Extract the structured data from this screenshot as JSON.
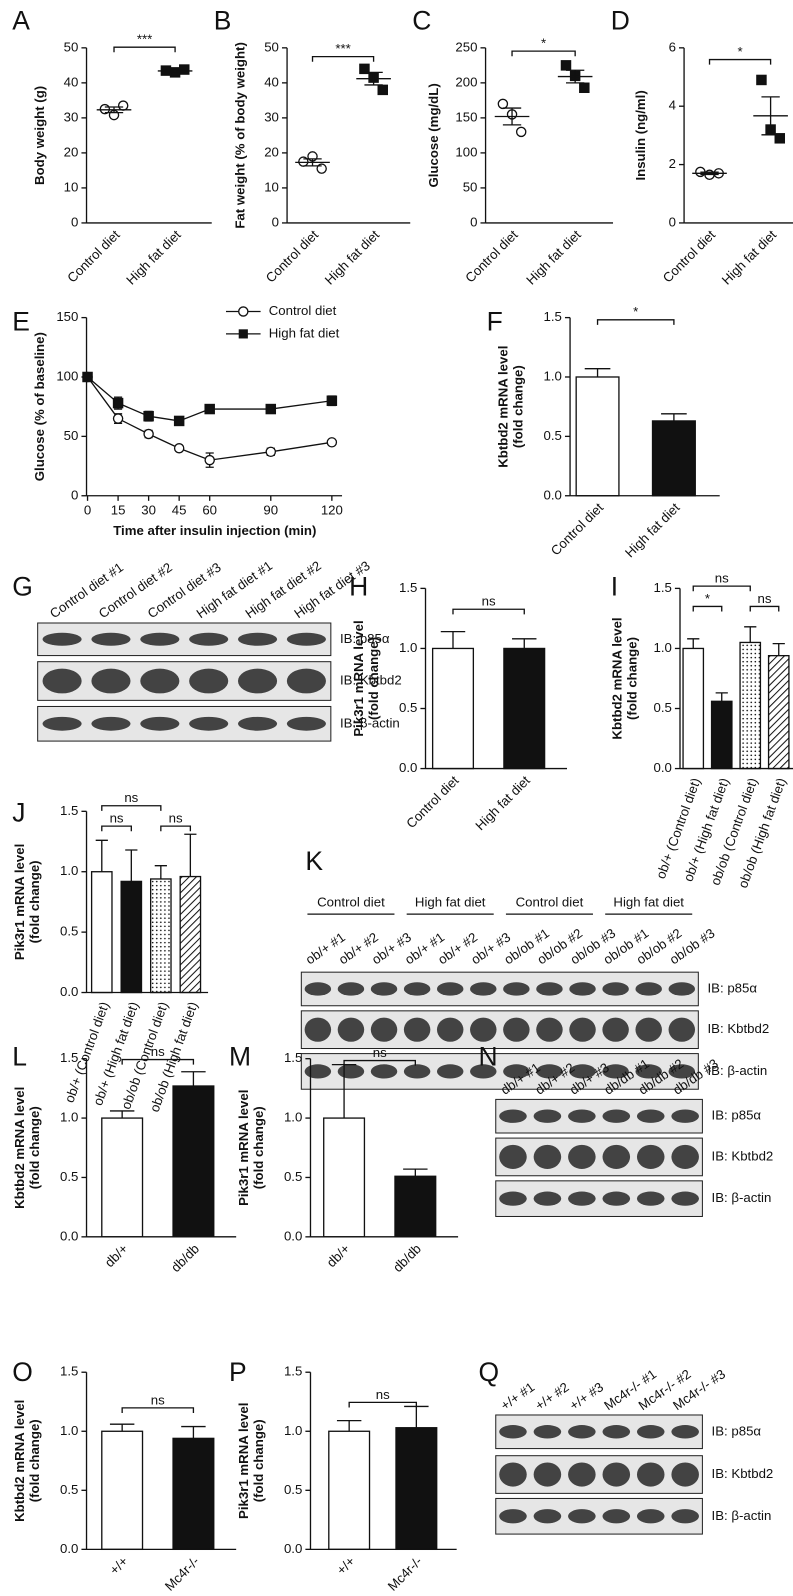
{
  "chart_data": [
    {
      "type": "dot",
      "label": "A",
      "ylabel": [
        "Body weight (g)"
      ],
      "categories": [
        "Control diet",
        "High fat diet"
      ],
      "markers": [
        "open-circle",
        "filled-square"
      ],
      "points": [
        [
          32.5,
          30.8,
          33.5
        ],
        [
          43.5,
          43,
          43.8
        ]
      ],
      "means": [
        32.3,
        43.4
      ],
      "errors": [
        0.8,
        0.3
      ],
      "ylim": [
        0,
        50
      ],
      "yticks": [
        0,
        10,
        20,
        30,
        40,
        50
      ],
      "comparisons": [
        {
          "label": "***",
          "pair": [
            0,
            1
          ]
        }
      ]
    },
    {
      "type": "dot",
      "label": "B",
      "ylabel": [
        "Fat weight (% of body weight)"
      ],
      "categories": [
        "Control diet",
        "High fat diet"
      ],
      "markers": [
        "open-circle",
        "filled-square"
      ],
      "points": [
        [
          17.5,
          19,
          15.5
        ],
        [
          44,
          41.5,
          38
        ]
      ],
      "means": [
        17.3,
        41.2
      ],
      "errors": [
        1,
        1.8
      ],
      "ylim": [
        0,
        50
      ],
      "yticks": [
        0,
        10,
        20,
        30,
        40,
        50
      ],
      "comparisons": [
        {
          "label": "***",
          "pair": [
            0,
            1
          ]
        }
      ]
    },
    {
      "type": "dot",
      "label": "C",
      "ylabel": [
        "Glucose (mg/dL)"
      ],
      "categories": [
        "Control diet",
        "High fat diet"
      ],
      "markers": [
        "open-circle",
        "filled-square"
      ],
      "points": [
        [
          170,
          155,
          130
        ],
        [
          225,
          210,
          193
        ]
      ],
      "means": [
        152,
        209
      ],
      "errors": [
        12,
        9
      ],
      "ylim": [
        0,
        250
      ],
      "yticks": [
        0,
        50,
        100,
        150,
        200,
        250
      ],
      "comparisons": [
        {
          "label": "*",
          "pair": [
            0,
            1
          ]
        }
      ]
    },
    {
      "type": "dot",
      "label": "D",
      "ylabel": [
        "Insulin (ng/ml)"
      ],
      "categories": [
        "Control diet",
        "High fat diet"
      ],
      "markers": [
        "open-circle",
        "filled-square"
      ],
      "points": [
        [
          1.75,
          1.65,
          1.7
        ],
        [
          4.9,
          3.2,
          2.9
        ]
      ],
      "means": [
        1.7,
        3.67
      ],
      "errors": [
        0.04,
        0.65
      ],
      "ylim": [
        0,
        6
      ],
      "yticks": [
        0,
        2,
        4,
        6
      ],
      "comparisons": [
        {
          "label": "*",
          "pair": [
            0,
            1
          ]
        }
      ]
    },
    {
      "type": "line",
      "label": "E",
      "ylabel": [
        "Glucose (% of baseline)"
      ],
      "xlabel": "Time after insulin injection (min)",
      "x": [
        0,
        15,
        30,
        45,
        60,
        90,
        120
      ],
      "xlim": [
        0,
        125
      ],
      "xticks": [
        0,
        15,
        30,
        45,
        60,
        90,
        120
      ],
      "ylim": [
        0,
        150
      ],
      "yticks": [
        0,
        50,
        100,
        150
      ],
      "series": [
        {
          "name": "Control diet",
          "marker": "open-circle",
          "values": [
            100,
            65,
            52,
            40,
            30,
            37,
            45
          ],
          "errors": [
            0,
            4,
            3,
            2,
            6,
            3,
            2
          ]
        },
        {
          "name": "High fat diet",
          "marker": "filled-square",
          "values": [
            100,
            78,
            67,
            63,
            73,
            73,
            80
          ],
          "errors": [
            0,
            5,
            4,
            2,
            3,
            3,
            4
          ]
        }
      ]
    },
    {
      "type": "bar",
      "label": "F",
      "ylabel": [
        "Kbtbd2 mRNA level",
        "(fold change)"
      ],
      "categories": [
        "Control diet",
        "High fat diet"
      ],
      "fills": [
        "white",
        "black"
      ],
      "values": [
        1.0,
        0.63
      ],
      "errors": [
        0.07,
        0.06
      ],
      "ylim": [
        0,
        1.5
      ],
      "yticks": [
        {
          "value": 0,
          "label": "0.0"
        },
        0.5,
        {
          "value": 1,
          "label": "1.0"
        },
        1.5
      ],
      "comparisons": [
        {
          "label": "*",
          "pair": [
            0,
            1
          ]
        }
      ]
    },
    {
      "type": "blot",
      "label": "G",
      "lanes": [
        "Control diet #1",
        "Control diet #2",
        "Control diet #3",
        "High fat diet #1",
        "High fat diet #2",
        "High fat diet #3"
      ],
      "blots": [
        "IB: p85α",
        "IB: Kbtbd2",
        "IB: β-actin"
      ]
    },
    {
      "type": "bar",
      "label": "H",
      "ylabel": [
        "Pik3r1 mRNA level",
        "(fold change)"
      ],
      "categories": [
        "Control diet",
        "High fat diet"
      ],
      "fills": [
        "white",
        "black"
      ],
      "values": [
        1.0,
        1.0
      ],
      "errors": [
        0.14,
        0.08
      ],
      "ylim": [
        0,
        1.5
      ],
      "yticks": [
        {
          "value": 0,
          "label": "0.0"
        },
        0.5,
        {
          "value": 1,
          "label": "1.0"
        },
        1.5
      ],
      "comparisons": [
        {
          "label": "ns",
          "pair": [
            0,
            1
          ]
        }
      ]
    },
    {
      "type": "bar",
      "label": "I",
      "ylabel": [
        "Kbtbd2 mRNA level",
        "(fold change)"
      ],
      "categories": [
        "ob/+ (Control diet)",
        "ob/+ (High fat diet)",
        "ob/ob (Control diet)",
        "ob/ob (High fat diet)"
      ],
      "fills": [
        "white",
        "black",
        "dots",
        "hatch"
      ],
      "values": [
        1.0,
        0.56,
        1.05,
        0.94
      ],
      "errors": [
        0.08,
        0.07,
        0.13,
        0.1
      ],
      "ylim": [
        0,
        1.5
      ],
      "yticks": [
        {
          "value": 0,
          "label": "0.0"
        },
        0.5,
        {
          "value": 1,
          "label": "1.0"
        },
        1.5
      ],
      "comparisons": [
        {
          "label": "*",
          "pair": [
            0,
            1
          ]
        },
        {
          "label": "ns",
          "pair": [
            2,
            3
          ]
        },
        {
          "label": "ns",
          "pair": [
            0,
            2
          ]
        }
      ]
    },
    {
      "type": "bar",
      "label": "J",
      "ylabel": [
        "Pik3r1 mRNA level",
        "(fold change)"
      ],
      "categories": [
        "ob/+ (Control diet)",
        "ob/+ (High fat diet)",
        "ob/ob (Control diet)",
        "ob/ob (High fat diet)"
      ],
      "fills": [
        "white",
        "black",
        "dots",
        "hatch"
      ],
      "values": [
        1.0,
        0.92,
        0.94,
        0.96
      ],
      "errors": [
        0.26,
        0.26,
        0.11,
        0.35
      ],
      "ylim": [
        0,
        1.5
      ],
      "yticks": [
        {
          "value": 0,
          "label": "0.0"
        },
        0.5,
        {
          "value": 1,
          "label": "1.0"
        },
        1.5
      ],
      "comparisons": [
        {
          "label": "ns",
          "pair": [
            0,
            1
          ]
        },
        {
          "label": "ns",
          "pair": [
            2,
            3
          ]
        },
        {
          "label": "ns",
          "pair": [
            0,
            2
          ]
        }
      ]
    },
    {
      "type": "blot",
      "label": "K",
      "groups": [
        "Control diet",
        "High fat diet",
        "Control diet",
        "High fat diet"
      ],
      "lanes": [
        "ob/+ #1",
        "ob/+ #2",
        "ob/+ #3",
        "ob/+ #1",
        "ob/+ #2",
        "ob/+ #3",
        "ob/ob #1",
        "ob/ob #2",
        "ob/ob #3",
        "ob/ob #1",
        "ob/ob #2",
        "ob/ob #3"
      ],
      "blots": [
        "IB: p85α",
        "IB: Kbtbd2",
        "IB: β-actin"
      ]
    },
    {
      "type": "bar",
      "label": "L",
      "ylabel": [
        "Kbtbd2 mRNA level",
        "(fold change)"
      ],
      "categories": [
        "db/+",
        "db/db"
      ],
      "fills": [
        "white",
        "black"
      ],
      "values": [
        1.0,
        1.27
      ],
      "errors": [
        0.06,
        0.12
      ],
      "ylim": [
        0,
        1.5
      ],
      "yticks": [
        {
          "value": 0,
          "label": "0.0"
        },
        0.5,
        {
          "value": 1,
          "label": "1.0"
        },
        1.5
      ],
      "comparisons": [
        {
          "label": "ns",
          "pair": [
            0,
            1
          ]
        }
      ]
    },
    {
      "type": "bar",
      "label": "M",
      "ylabel": [
        "Pik3r1 mRNA level",
        "(fold change)"
      ],
      "categories": [
        "db/+",
        "db/db"
      ],
      "fills": [
        "white",
        "black"
      ],
      "values": [
        1.0,
        0.51
      ],
      "errors": [
        0.45,
        0.06
      ],
      "ylim": [
        0,
        1.5
      ],
      "yticks": [
        {
          "value": 0,
          "label": "0.0"
        },
        0.5,
        {
          "value": 1,
          "label": "1.0"
        },
        1.5
      ],
      "comparisons": [
        {
          "label": "ns",
          "pair": [
            0,
            1
          ]
        }
      ]
    },
    {
      "type": "blot",
      "label": "N",
      "lanes": [
        "db/+ #1",
        "db/+ #2",
        "db/+ #3",
        "db/db #1",
        "db/db #2",
        "db/db #3"
      ],
      "blots": [
        "IB: p85α",
        "IB: Kbtbd2",
        "IB: β-actin"
      ]
    },
    {
      "type": "bar",
      "label": "O",
      "ylabel": [
        "Kbtbd2 mRNA level",
        "(fold change)"
      ],
      "categories": [
        "+/+",
        "Mc4r-/-"
      ],
      "fills": [
        "white",
        "black"
      ],
      "values": [
        1.0,
        0.94
      ],
      "errors": [
        0.06,
        0.1
      ],
      "ylim": [
        0,
        1.5
      ],
      "yticks": [
        {
          "value": 0,
          "label": "0.0"
        },
        0.5,
        {
          "value": 1,
          "label": "1.0"
        },
        1.5
      ],
      "comparisons": [
        {
          "label": "ns",
          "pair": [
            0,
            1
          ]
        }
      ]
    },
    {
      "type": "bar",
      "label": "P",
      "ylabel": [
        "Pik3r1 mRNA level",
        "(fold change)"
      ],
      "categories": [
        "+/+",
        "Mc4r-/-"
      ],
      "fills": [
        "white",
        "black"
      ],
      "values": [
        1.0,
        1.03
      ],
      "errors": [
        0.09,
        0.18
      ],
      "ylim": [
        0,
        1.5
      ],
      "yticks": [
        {
          "value": 0,
          "label": "0.0"
        },
        0.5,
        {
          "value": 1,
          "label": "1.0"
        },
        1.5
      ],
      "comparisons": [
        {
          "label": "ns",
          "pair": [
            0,
            1
          ]
        }
      ]
    },
    {
      "type": "blot",
      "label": "Q",
      "lanes": [
        "+/+ #1",
        "+/+ #2",
        "+/+ #3",
        "Mc4r-/- #1",
        "Mc4r-/- #2",
        "Mc4r-/- #3"
      ],
      "blots": [
        "IB: p85α",
        "IB: Kbtbd2",
        "IB: β-actin"
      ]
    }
  ]
}
